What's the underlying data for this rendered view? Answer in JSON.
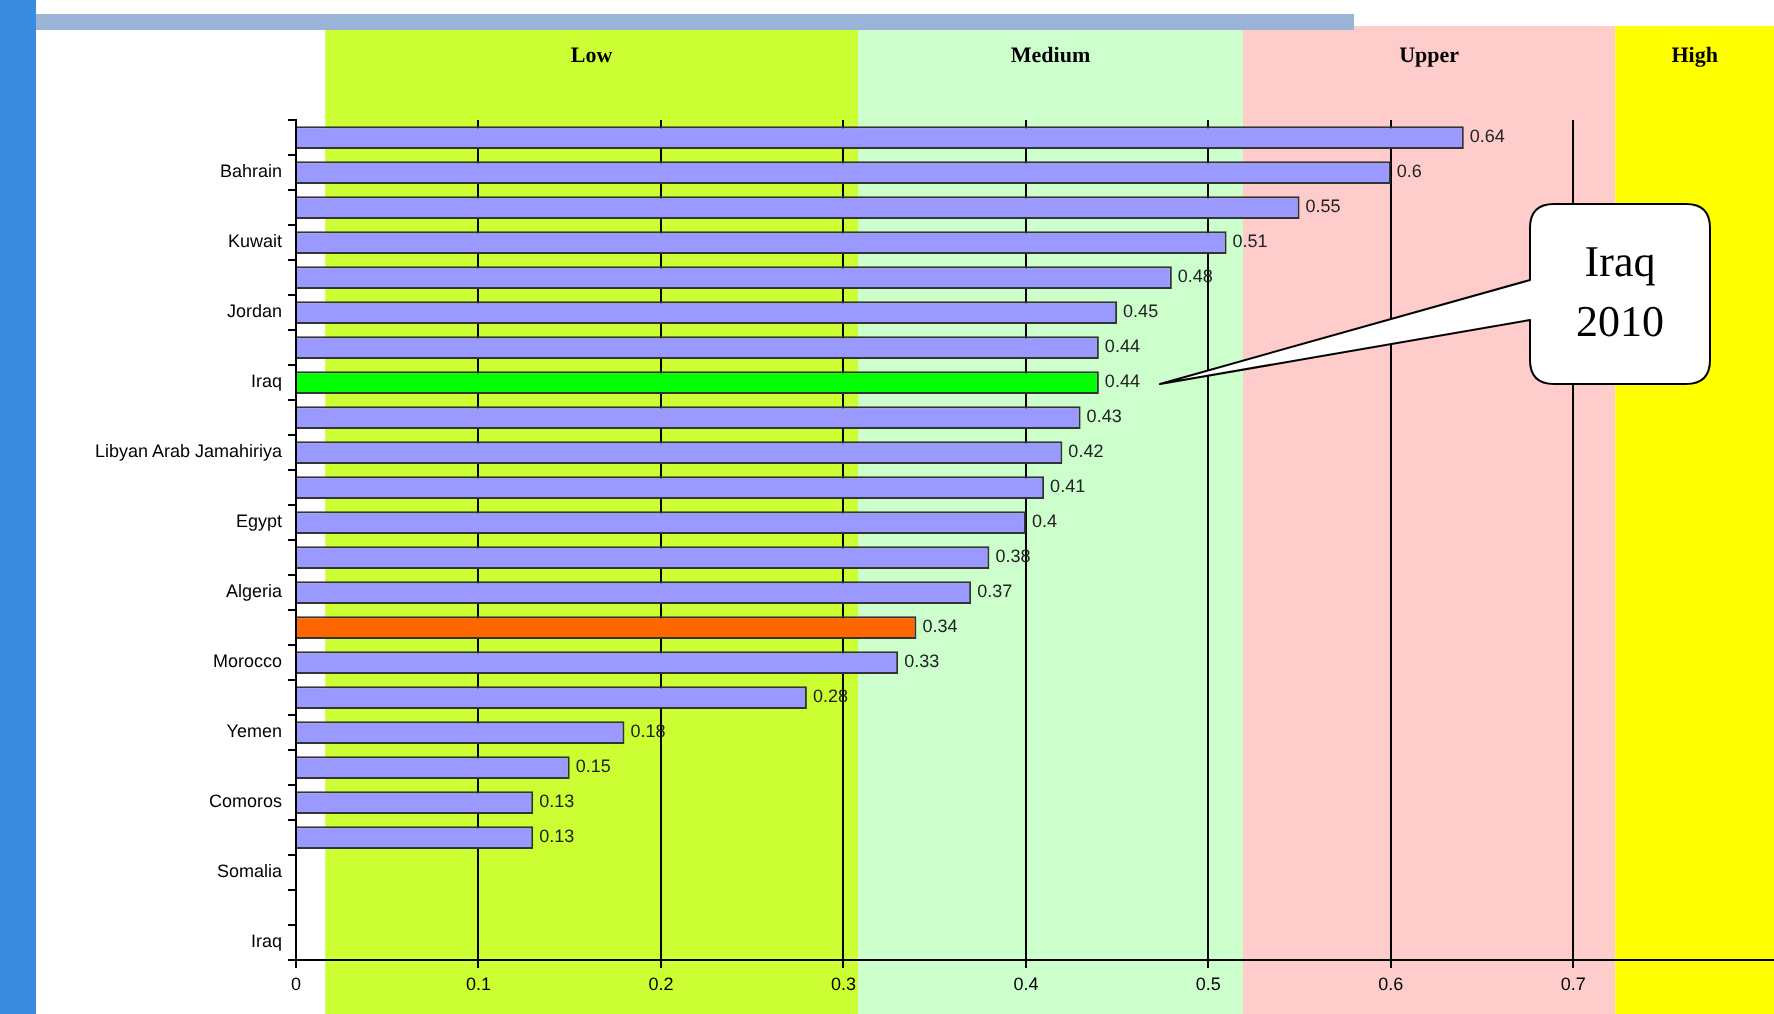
{
  "chart_data": {
    "type": "bar",
    "orientation": "horizontal",
    "categories": [
      null,
      "Bahrain",
      null,
      "Kuwait",
      null,
      "Jordan",
      null,
      "Iraq",
      null,
      "Libyan Arab Jamahiriya",
      null,
      "Egypt",
      null,
      "Algeria",
      null,
      "Morocco",
      null,
      "Yemen",
      null,
      "Comoros",
      null,
      "Somalia",
      null,
      "Iraq"
    ],
    "values": [
      0.64,
      0.6,
      0.55,
      0.51,
      0.48,
      0.45,
      0.44,
      0.44,
      0.43,
      0.42,
      0.41,
      0.4,
      0.38,
      0.37,
      0.34,
      0.33,
      0.28,
      0.18,
      0.15,
      0.13,
      0.13,
      null,
      null,
      null
    ],
    "colors": [
      "#9999ff",
      "#9999ff",
      "#9999ff",
      "#9999ff",
      "#9999ff",
      "#9999ff",
      "#9999ff",
      "#00ff00",
      "#9999ff",
      "#9999ff",
      "#9999ff",
      "#9999ff",
      "#9999ff",
      "#9999ff",
      "#ff6600",
      "#9999ff",
      "#9999ff",
      "#9999ff",
      "#9999ff",
      "#9999ff",
      "#9999ff",
      "#9999ff",
      "#9999ff",
      "#9999ff"
    ],
    "xlim": [
      0,
      0.81
    ],
    "xticks": [
      0,
      0.1,
      0.2,
      0.3,
      0.4,
      0.5,
      0.6,
      0.7
    ],
    "grid": "x",
    "data_labels": true,
    "legend": false,
    "bands": [
      {
        "axis": "x",
        "from": 0.016,
        "to": 0.308,
        "label": "Low",
        "color": "#ccff33"
      },
      {
        "axis": "x",
        "from": 0.308,
        "to": 0.519,
        "label": "Medium",
        "color": "#ccffcc"
      },
      {
        "axis": "x",
        "from": 0.519,
        "to": 0.723,
        "label": "Upper",
        "color": "#ffcccc"
      },
      {
        "axis": "x",
        "from": 0.723,
        "to": 0.81,
        "label": "High",
        "color": "#ffff00"
      }
    ],
    "annotations": [
      "Iraq 2010"
    ]
  }
}
